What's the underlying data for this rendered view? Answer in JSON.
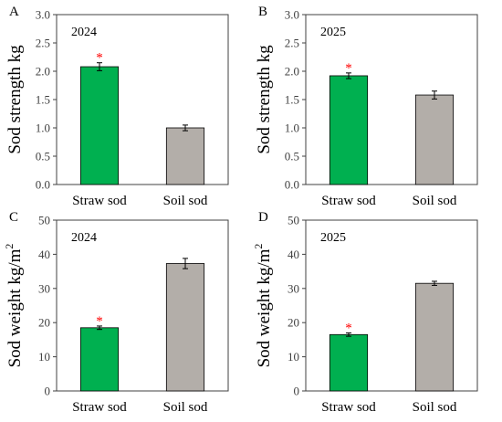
{
  "colors": {
    "straw": "#00b050",
    "soil": "#b3aea9",
    "significance": "#ff0000",
    "axis": "#404040",
    "error": "#000000"
  },
  "chart_data": [
    {
      "panel_label": "A",
      "year_label": "2024",
      "type": "bar",
      "categories": [
        "Straw sod",
        "Soil sod"
      ],
      "values": [
        2.08,
        1.0
      ],
      "errors": [
        0.07,
        0.05
      ],
      "ylabel": "Sod strength kg",
      "ylabel_sup": "",
      "ylim": [
        0,
        3.0
      ],
      "yticks": [
        "0.0",
        "0.5",
        "1.0",
        "1.5",
        "2.0",
        "2.5",
        "3.0"
      ],
      "significance": [
        "*",
        ""
      ]
    },
    {
      "panel_label": "B",
      "year_label": "2025",
      "type": "bar",
      "categories": [
        "Straw sod",
        "Soil sod"
      ],
      "values": [
        1.92,
        1.58
      ],
      "errors": [
        0.05,
        0.07
      ],
      "ylabel": "Sod strength kg",
      "ylabel_sup": "",
      "ylim": [
        0,
        3.0
      ],
      "yticks": [
        "0.0",
        "0.5",
        "1.0",
        "1.5",
        "2.0",
        "2.5",
        "3.0"
      ],
      "significance": [
        "*",
        ""
      ]
    },
    {
      "panel_label": "C",
      "year_label": "2024",
      "type": "bar",
      "categories": [
        "Straw sod",
        "Soil sod"
      ],
      "values": [
        18.5,
        37.3
      ],
      "errors": [
        0.5,
        1.5
      ],
      "ylabel": "Sod weight kg/m",
      "ylabel_sup": "2",
      "ylim": [
        0,
        50
      ],
      "yticks": [
        "0",
        "10",
        "20",
        "30",
        "40",
        "50"
      ],
      "significance": [
        "*",
        ""
      ]
    },
    {
      "panel_label": "D",
      "year_label": "2025",
      "type": "bar",
      "categories": [
        "Straw sod",
        "Soil sod"
      ],
      "values": [
        16.5,
        31.5
      ],
      "errors": [
        0.5,
        0.6
      ],
      "ylabel": "Sod weight kg/m",
      "ylabel_sup": "2",
      "ylim": [
        0,
        50
      ],
      "yticks": [
        "0",
        "10",
        "20",
        "30",
        "40",
        "50"
      ],
      "significance": [
        "*",
        ""
      ]
    }
  ]
}
